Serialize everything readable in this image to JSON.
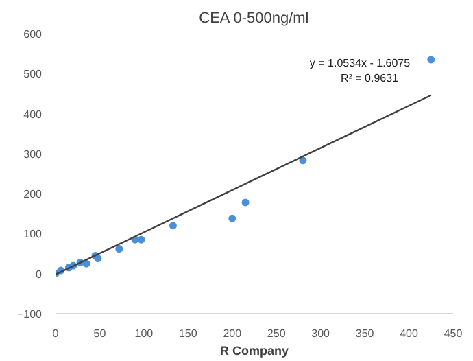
{
  "chart_data": {
    "type": "scatter",
    "title": "CEA 0-500ng/ml",
    "xlabel": "R Company",
    "xlim": [
      0,
      450
    ],
    "xticks": [
      0,
      50,
      100,
      150,
      200,
      250,
      300,
      350,
      400,
      450
    ],
    "ylim": [
      -100,
      600
    ],
    "yticks": [
      -100,
      0,
      100,
      200,
      300,
      400,
      500,
      600
    ],
    "grid": false,
    "marker": "circle",
    "annotations": [
      "y = 1.0534x - 1.6075",
      "R² = 0.9631"
    ],
    "series": [
      {
        "color": "#4a8fd8",
        "x": [
          0,
          6,
          15,
          20,
          28,
          35,
          45,
          48,
          72,
          90,
          97,
          133,
          200,
          215,
          280,
          425
        ],
        "values": [
          0,
          8,
          15,
          20,
          28,
          25,
          45,
          38,
          62,
          85,
          85,
          120,
          138,
          178,
          283,
          535
        ]
      },
      {
        "type": "line",
        "color": "#404040",
        "marker": "none",
        "line_style": "solid",
        "x": [
          0,
          425
        ],
        "values": [
          -2,
          446
        ]
      }
    ]
  }
}
